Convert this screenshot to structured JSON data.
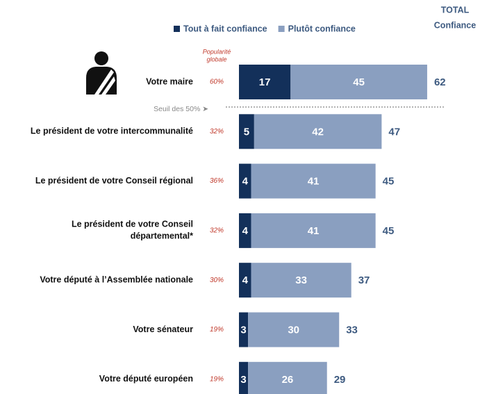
{
  "chart_data": {
    "type": "stacked-bar-horizontal",
    "legend_position": "top",
    "total_header": [
      "TOTAL",
      "Confiance"
    ],
    "popularity_header": [
      "Popularité",
      "globale"
    ],
    "threshold_label": "Seuil des 50% ➤",
    "categories": [
      "Votre maire",
      "Le président de votre intercommunalité",
      "Le président de votre Conseil régional",
      "Le président de votre Conseil\ndépartemental*",
      "Votre député à l’Assemblée nationale",
      "Votre sénateur",
      "Votre député européen"
    ],
    "series": [
      {
        "name": "Tout à fait confiance",
        "color": "#13305a",
        "values": [
          17,
          5,
          4,
          4,
          4,
          3,
          3
        ]
      },
      {
        "name": "Plutôt confiance",
        "color": "#8a9fc0",
        "values": [
          45,
          42,
          41,
          41,
          33,
          30,
          26
        ]
      }
    ],
    "totals": [
      62,
      47,
      45,
      45,
      37,
      33,
      29
    ],
    "popularity": [
      60,
      32,
      36,
      32,
      30,
      19,
      19
    ],
    "popularity_labels": [
      "60%",
      "32%",
      "36%",
      "32%",
      "30%",
      "19%",
      "19%"
    ]
  }
}
